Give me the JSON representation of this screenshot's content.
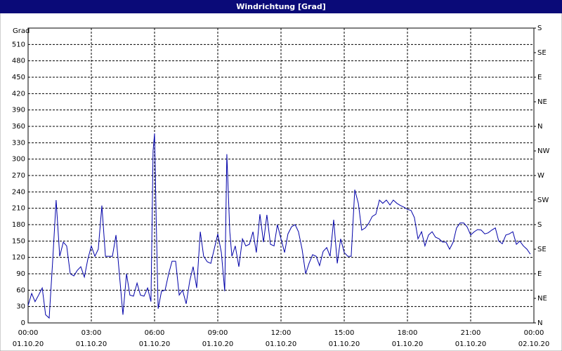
{
  "chart_data": {
    "type": "line",
    "title": "Windrichtung [Grad]",
    "y_label": "Grad",
    "xlim": [
      0,
      24
    ],
    "xticks": [
      {
        "value": 0,
        "label": "00:00",
        "date": "01.10.20"
      },
      {
        "value": 3,
        "label": "03:00",
        "date": "01.10.20"
      },
      {
        "value": 6,
        "label": "06:00",
        "date": "01.10.20"
      },
      {
        "value": 9,
        "label": "09:00",
        "date": "01.10.20"
      },
      {
        "value": 12,
        "label": "12:00",
        "date": "01.10.20"
      },
      {
        "value": 15,
        "label": "15:00",
        "date": "01.10.20"
      },
      {
        "value": 18,
        "label": "18:00",
        "date": "01.10.20"
      },
      {
        "value": 21,
        "label": "21:00",
        "date": "01.10.20"
      },
      {
        "value": 24,
        "label": "00:00",
        "date": "02.10.20"
      }
    ],
    "ylim": [
      0,
      540
    ],
    "yticks": [
      0,
      30,
      60,
      90,
      120,
      150,
      180,
      210,
      240,
      270,
      300,
      330,
      360,
      390,
      420,
      450,
      480,
      510
    ],
    "y2lim": [
      0,
      540
    ],
    "y2ticks": [
      {
        "value": 0,
        "label": "N"
      },
      {
        "value": 45,
        "label": "NE"
      },
      {
        "value": 90,
        "label": "E"
      },
      {
        "value": 135,
        "label": "SE"
      },
      {
        "value": 180,
        "label": "S"
      },
      {
        "value": 225,
        "label": "SW"
      },
      {
        "value": 270,
        "label": "W"
      },
      {
        "value": 315,
        "label": "NW"
      },
      {
        "value": 360,
        "label": "N"
      },
      {
        "value": 405,
        "label": "NE"
      },
      {
        "value": 450,
        "label": "E"
      },
      {
        "value": 495,
        "label": "SE"
      },
      {
        "value": 540,
        "label": "S"
      }
    ],
    "grid": true,
    "color": "#0000a8",
    "x": [
      0,
      0.17,
      0.33,
      0.5,
      0.67,
      0.83,
      1,
      1.17,
      1.33,
      1.5,
      1.67,
      1.83,
      2,
      2.17,
      2.33,
      2.5,
      2.67,
      2.83,
      3,
      3.17,
      3.33,
      3.5,
      3.67,
      3.83,
      4,
      4.17,
      4.33,
      4.5,
      4.67,
      4.83,
      5,
      5.17,
      5.33,
      5.5,
      5.67,
      5.83,
      5.93,
      6,
      6.07,
      6.17,
      6.33,
      6.5,
      6.67,
      6.83,
      7,
      7.17,
      7.33,
      7.5,
      7.67,
      7.83,
      8,
      8.17,
      8.33,
      8.5,
      8.67,
      8.83,
      9,
      9.17,
      9.33,
      9.43,
      9.57,
      9.67,
      9.83,
      10,
      10.17,
      10.33,
      10.5,
      10.67,
      10.83,
      11,
      11.17,
      11.33,
      11.5,
      11.67,
      11.83,
      12,
      12.17,
      12.33,
      12.5,
      12.67,
      12.83,
      13,
      13.17,
      13.33,
      13.5,
      13.67,
      13.83,
      14,
      14.17,
      14.33,
      14.5,
      14.67,
      14.83,
      15,
      15.17,
      15.33,
      15.5,
      15.67,
      15.83,
      16,
      16.17,
      16.33,
      16.5,
      16.67,
      16.83,
      17,
      17.17,
      17.33,
      17.5,
      17.67,
      17.83,
      18,
      18.17,
      18.33,
      18.5,
      18.67,
      18.83,
      19,
      19.17,
      19.33,
      19.5,
      19.67,
      19.83,
      20,
      20.17,
      20.33,
      20.5,
      20.67,
      20.83,
      21,
      21.17,
      21.33,
      21.5,
      21.67,
      21.83,
      22,
      22.17,
      22.33,
      22.5,
      22.67,
      22.83,
      23,
      23.17,
      23.33,
      23.5,
      23.67,
      23.83
    ],
    "values": [
      32,
      54,
      39,
      51,
      64,
      15,
      9,
      116,
      225,
      122,
      148,
      141,
      90,
      86,
      96,
      103,
      84,
      116,
      141,
      122,
      135,
      215,
      122,
      122,
      122,
      161,
      90,
      15,
      90,
      51,
      49,
      73,
      51,
      49,
      64,
      39,
      315,
      347,
      206,
      26,
      58,
      60,
      90,
      113,
      113,
      51,
      60,
      35,
      77,
      103,
      64,
      167,
      122,
      112,
      109,
      135,
      163,
      129,
      58,
      309,
      167,
      122,
      141,
      103,
      154,
      141,
      144,
      167,
      129,
      199,
      148,
      198,
      144,
      141,
      180,
      154,
      129,
      163,
      176,
      180,
      167,
      135,
      90,
      109,
      125,
      122,
      105,
      131,
      138,
      122,
      189,
      109,
      154,
      129,
      122,
      122,
      244,
      219,
      170,
      174,
      183,
      195,
      199,
      225,
      219,
      225,
      216,
      225,
      219,
      215,
      212,
      208,
      206,
      193,
      154,
      167,
      141,
      161,
      167,
      157,
      154,
      148,
      148,
      135,
      148,
      174,
      183,
      183,
      176,
      161,
      167,
      171,
      170,
      163,
      165,
      170,
      174,
      150,
      145,
      161,
      163,
      167,
      144,
      150,
      141,
      135,
      126
    ]
  }
}
